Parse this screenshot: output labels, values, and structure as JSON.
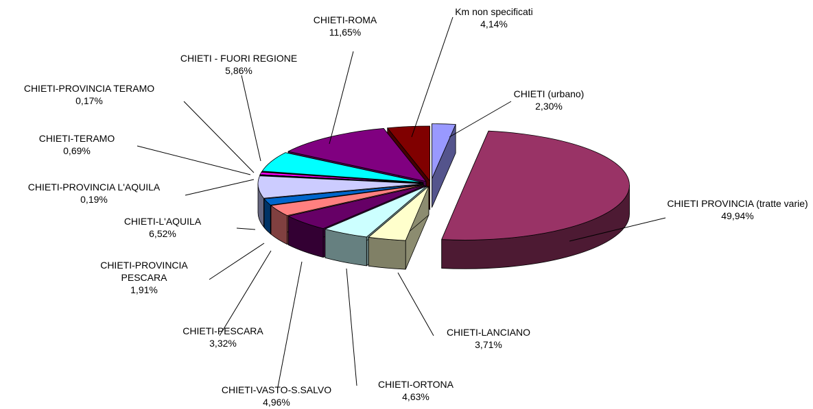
{
  "chart_data": {
    "type": "pie",
    "categories": [
      "CHIETI (urbano)",
      "CHIETI PROVINCIA (tratte varie)",
      "CHIETI-LANCIANO",
      "CHIETI-ORTONA",
      "CHIETI-VASTO-S.SALVO",
      "CHIETI-PESCARA",
      "CHIETI-PROVINCIA PESCARA",
      "CHIETI-L'AQUILA",
      "CHIETI-PROVINCIA L'AQUILA",
      "CHIETI-TERAMO",
      "CHIETI-PROVINCIA TERAMO",
      "CHIETI - FUORI REGIONE",
      "CHIETI-ROMA",
      "Km non specificati"
    ],
    "values": [
      2.3,
      49.94,
      3.71,
      4.63,
      4.96,
      3.32,
      1.91,
      6.52,
      0.19,
      0.69,
      0.17,
      5.86,
      11.65,
      4.14
    ],
    "value_labels": [
      "2,30%",
      "49,94%",
      "3,71%",
      "4,63%",
      "4,96%",
      "3,32%",
      "1,91%",
      "6,52%",
      "0,19%",
      "0,69%",
      "0,17%",
      "5,86%",
      "11,65%",
      "4,14%"
    ],
    "colors": [
      "#9999ff",
      "#993366",
      "#ffffcc",
      "#ccffff",
      "#660066",
      "#ff8080",
      "#0066cc",
      "#ccccff",
      "#000080",
      "#ff00ff",
      "#ffff00",
      "#00ffff",
      "#800080",
      "#800000"
    ]
  }
}
